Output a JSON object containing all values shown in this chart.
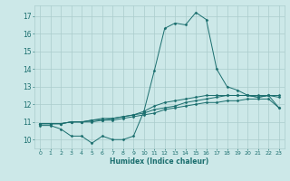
{
  "xlabel": "Humidex (Indice chaleur)",
  "bg_color": "#cce8e8",
  "grid_color": "#aacccc",
  "line_color": "#1a6e6e",
  "xlim": [
    -0.5,
    23.5
  ],
  "ylim": [
    9.5,
    17.6
  ],
  "xticks": [
    0,
    1,
    2,
    3,
    4,
    5,
    6,
    7,
    8,
    9,
    10,
    11,
    12,
    13,
    14,
    15,
    16,
    17,
    18,
    19,
    20,
    21,
    22,
    23
  ],
  "yticks": [
    10,
    11,
    12,
    13,
    14,
    15,
    16,
    17
  ],
  "series": [
    [
      10.8,
      10.8,
      10.6,
      10.2,
      10.2,
      9.8,
      10.2,
      10.0,
      10.0,
      10.2,
      11.6,
      13.9,
      16.3,
      16.6,
      16.5,
      17.2,
      16.8,
      14.0,
      13.0,
      12.8,
      12.5,
      12.4,
      12.5,
      11.8
    ],
    [
      10.9,
      10.9,
      10.9,
      11.0,
      11.0,
      11.1,
      11.2,
      11.2,
      11.3,
      11.4,
      11.5,
      11.7,
      11.8,
      11.9,
      12.1,
      12.2,
      12.3,
      12.4,
      12.5,
      12.5,
      12.5,
      12.5,
      12.5,
      12.5
    ],
    [
      10.9,
      10.9,
      10.9,
      11.0,
      11.0,
      11.1,
      11.1,
      11.2,
      11.3,
      11.4,
      11.6,
      11.9,
      12.1,
      12.2,
      12.3,
      12.4,
      12.5,
      12.5,
      12.5,
      12.5,
      12.5,
      12.4,
      12.5,
      12.4
    ],
    [
      10.9,
      10.9,
      10.9,
      11.0,
      11.0,
      11.0,
      11.1,
      11.1,
      11.2,
      11.3,
      11.4,
      11.5,
      11.7,
      11.8,
      11.9,
      12.0,
      12.1,
      12.1,
      12.2,
      12.2,
      12.3,
      12.3,
      12.3,
      11.8
    ]
  ],
  "xtick_fontsize": 4.5,
  "ytick_fontsize": 5.5,
  "xlabel_fontsize": 5.5
}
